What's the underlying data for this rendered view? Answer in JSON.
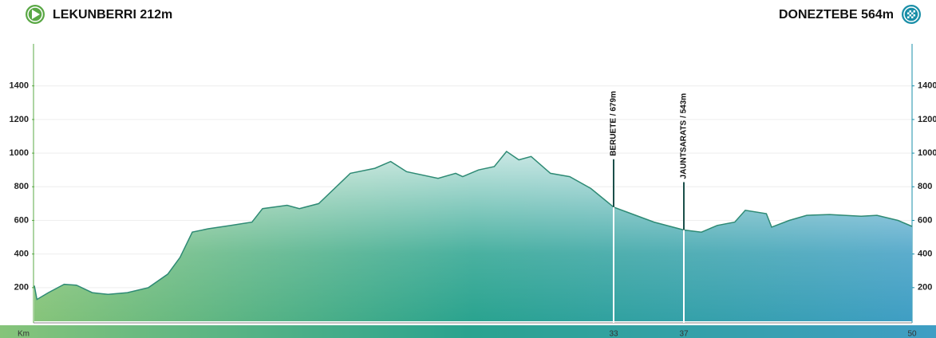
{
  "chart_data": {
    "type": "area",
    "start_label": "LEKUNBERRI 212m",
    "finish_label": "DONEZTEBE 564m",
    "xlabel": "Km",
    "x": [
      0,
      0.15,
      0.8,
      1.7,
      2.4,
      3.3,
      4.2,
      5.3,
      6.5,
      7.6,
      8.3,
      9.0,
      9.9,
      11.2,
      12.4,
      13.0,
      14.4,
      15.1,
      16.2,
      18.0,
      19.4,
      20.3,
      21.2,
      23.0,
      24.0,
      24.4,
      25.3,
      26.2,
      26.9,
      27.6,
      28.3,
      29.4,
      30.5,
      31.7,
      33,
      34.0,
      35.3,
      37,
      38.0,
      38.9,
      39.9,
      40.5,
      41.7,
      42.0,
      43.0,
      44.0,
      45.3,
      47.1,
      48.0,
      49.2,
      50
    ],
    "values": [
      212,
      130,
      170,
      220,
      215,
      170,
      160,
      170,
      200,
      280,
      380,
      530,
      550,
      570,
      590,
      670,
      690,
      670,
      700,
      880,
      910,
      950,
      890,
      850,
      880,
      860,
      900,
      920,
      1010,
      960,
      980,
      880,
      860,
      790,
      679,
      640,
      590,
      543,
      530,
      570,
      590,
      660,
      640,
      560,
      600,
      630,
      635,
      625,
      630,
      600,
      564
    ],
    "xlim": [
      0,
      50
    ],
    "ylim": [
      0,
      1650
    ],
    "xticks": [
      33,
      37,
      50
    ],
    "yticks": [
      200,
      400,
      600,
      800,
      1000,
      1200,
      1400
    ],
    "markers": [
      {
        "x": 33,
        "label": "BERUETE / 679m"
      },
      {
        "x": 37,
        "label": "JAUNTSARATS / 543m"
      }
    ],
    "gradient": [
      "#86c47a",
      "#2aa38f",
      "#3f9ec4"
    ],
    "line_color": "#2e8a74",
    "grid": true
  }
}
